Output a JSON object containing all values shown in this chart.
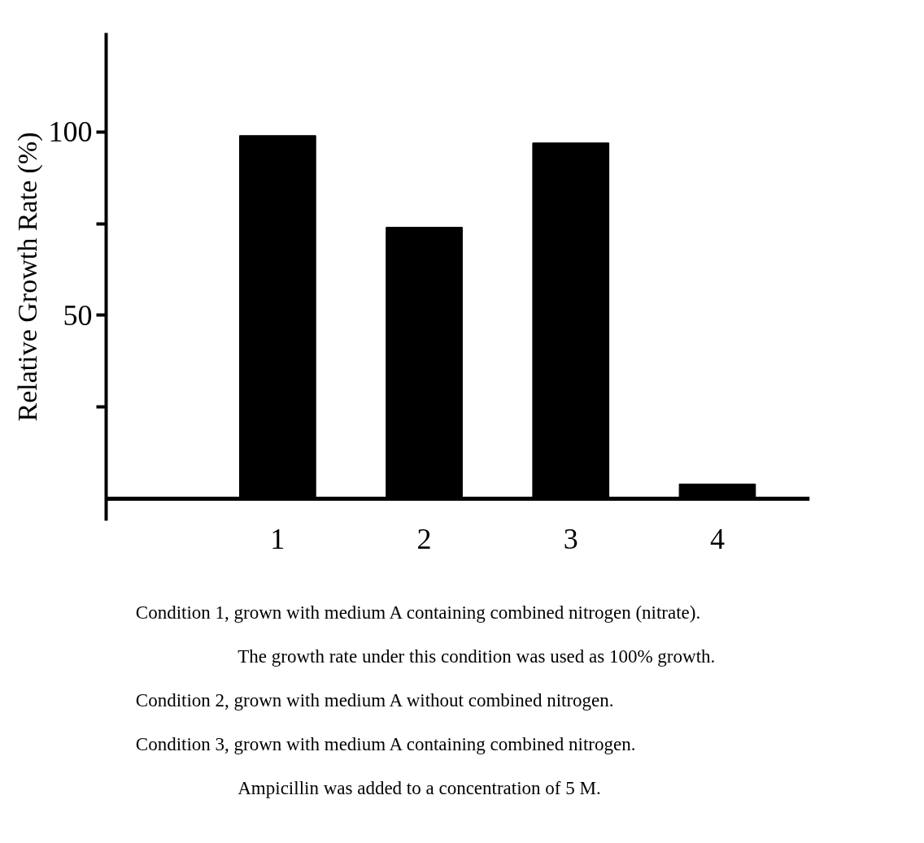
{
  "chart_data": {
    "type": "bar",
    "ylabel": "Relative Growth Rate (%)",
    "categories": [
      "1",
      "2",
      "3",
      "4"
    ],
    "values": [
      99,
      74,
      97,
      4
    ],
    "color": "#000000",
    "ylim": [
      -6,
      127
    ],
    "yticks": [
      {
        "value": 25,
        "label": null
      },
      50,
      {
        "value": 75,
        "label": null
      },
      100
    ],
    "grid": false,
    "annotations": [
      "Condition 1, grown with medium A containing combined nitrogen (nitrate).",
      "The growth rate under this condition was used as 100% growth.",
      "Condition 2, grown with medium A without combined nitrogen.",
      "Condition 3, grown with medium A containing combined nitrogen.",
      "Ampicillin was added to a concentration of 5     M."
    ]
  }
}
